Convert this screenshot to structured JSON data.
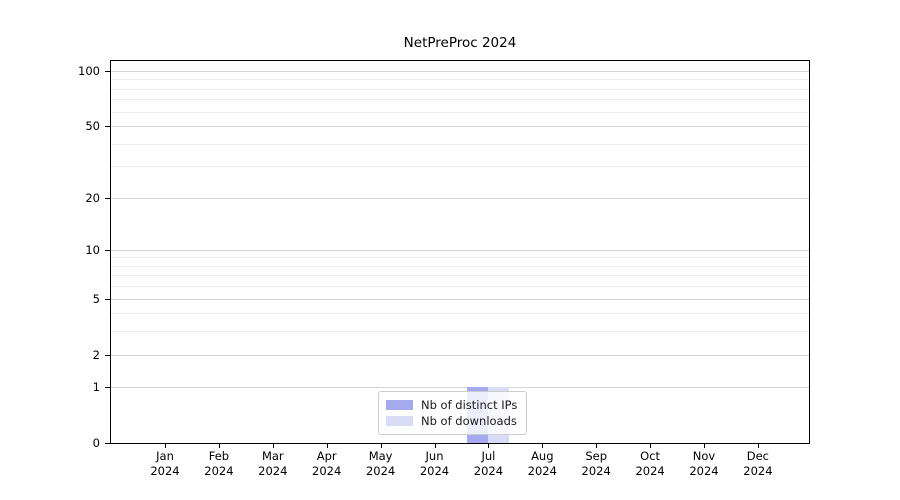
{
  "chart_data": {
    "type": "bar",
    "title": "NetPreProc 2024",
    "year": "2024",
    "categories": [
      "Jan",
      "Feb",
      "Mar",
      "Apr",
      "May",
      "Jun",
      "Jul",
      "Aug",
      "Sep",
      "Oct",
      "Nov",
      "Dec"
    ],
    "series": [
      {
        "name": "Nb of distinct IPs",
        "color": "#a5aaee",
        "values": [
          0,
          0,
          0,
          0,
          0,
          0,
          1,
          0,
          0,
          0,
          0,
          0
        ]
      },
      {
        "name": "Nb of downloads",
        "color": "#d9dcf7",
        "values": [
          0,
          0,
          0,
          0,
          0,
          0,
          1,
          0,
          0,
          0,
          0,
          0
        ]
      }
    ],
    "y_ticks": [
      0,
      1,
      2,
      5,
      10,
      20,
      50,
      100
    ],
    "y_minor_ticks": [
      3,
      4,
      6,
      7,
      8,
      9,
      30,
      40,
      60,
      70,
      80,
      90
    ],
    "y_scale": "log1p",
    "ylim": [
      0,
      114
    ],
    "grid": true,
    "legend_position": "lower center",
    "colors": {
      "major_grid": "#d4d4d4",
      "minor_grid": "#ececec",
      "spine": "#000000"
    }
  }
}
